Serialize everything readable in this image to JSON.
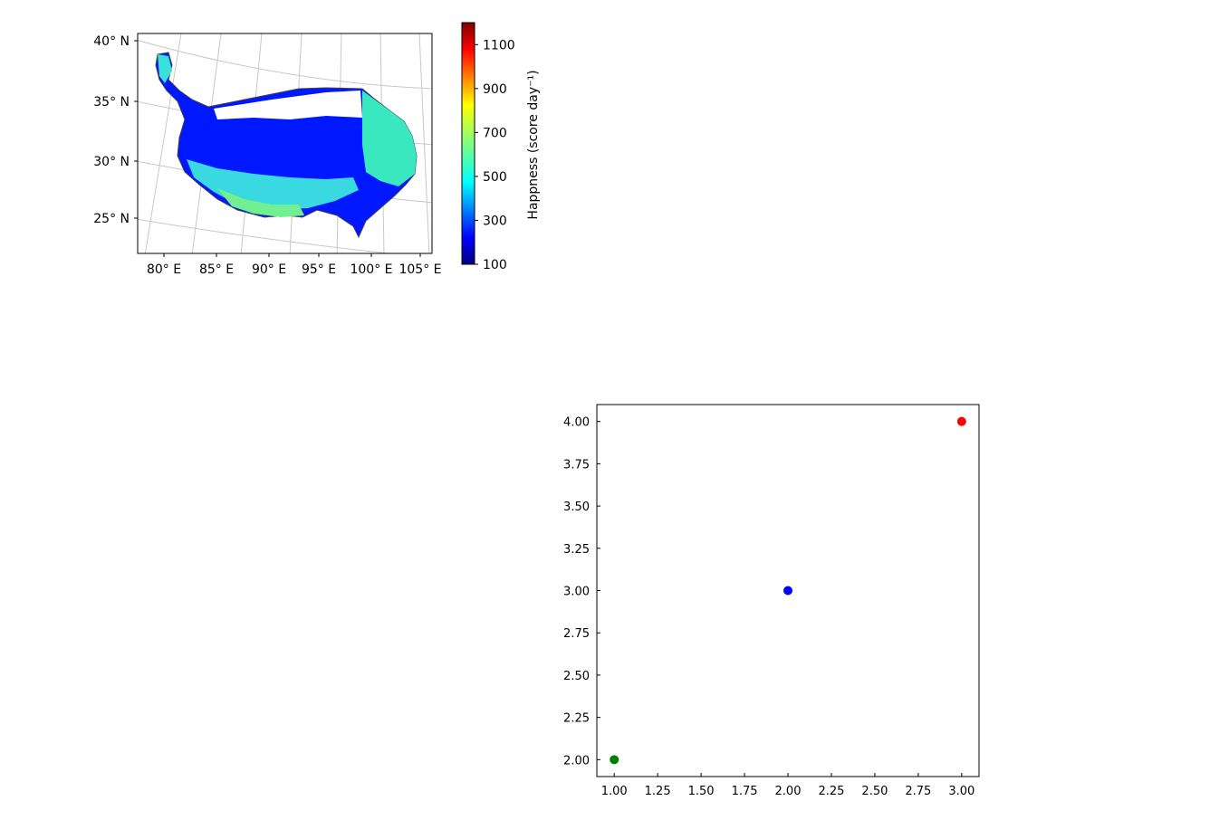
{
  "chart_data": [
    {
      "type": "heatmap",
      "projection": "map",
      "x_ticks": [
        "80° E",
        "85° E",
        "90° E",
        "95° E",
        "100° E",
        "105° E"
      ],
      "y_ticks": [
        "40° N",
        "35° N",
        "30° N",
        "25° N"
      ],
      "grid": true,
      "colorbar": {
        "label": "Happness (score day⁻¹)",
        "colormap": "jet",
        "range": [
          100,
          1200
        ],
        "ticks": [
          "1100",
          "900",
          "700",
          "500",
          "300",
          "100"
        ]
      }
    },
    {
      "type": "scatter",
      "points": [
        {
          "x": 1.0,
          "y": 2.0,
          "color": "#008000"
        },
        {
          "x": 2.0,
          "y": 3.0,
          "color": "#0000ff"
        },
        {
          "x": 3.0,
          "y": 4.0,
          "color": "#ff0000"
        }
      ],
      "xlim": [
        0.9,
        3.1
      ],
      "ylim": [
        1.9,
        4.1
      ],
      "x_ticks": [
        "1.00",
        "1.25",
        "1.50",
        "1.75",
        "2.00",
        "2.25",
        "2.50",
        "2.75",
        "3.00"
      ],
      "y_ticks": [
        "4.00",
        "3.75",
        "3.50",
        "3.25",
        "3.00",
        "2.75",
        "2.50",
        "2.25",
        "2.00"
      ],
      "grid": false
    }
  ]
}
